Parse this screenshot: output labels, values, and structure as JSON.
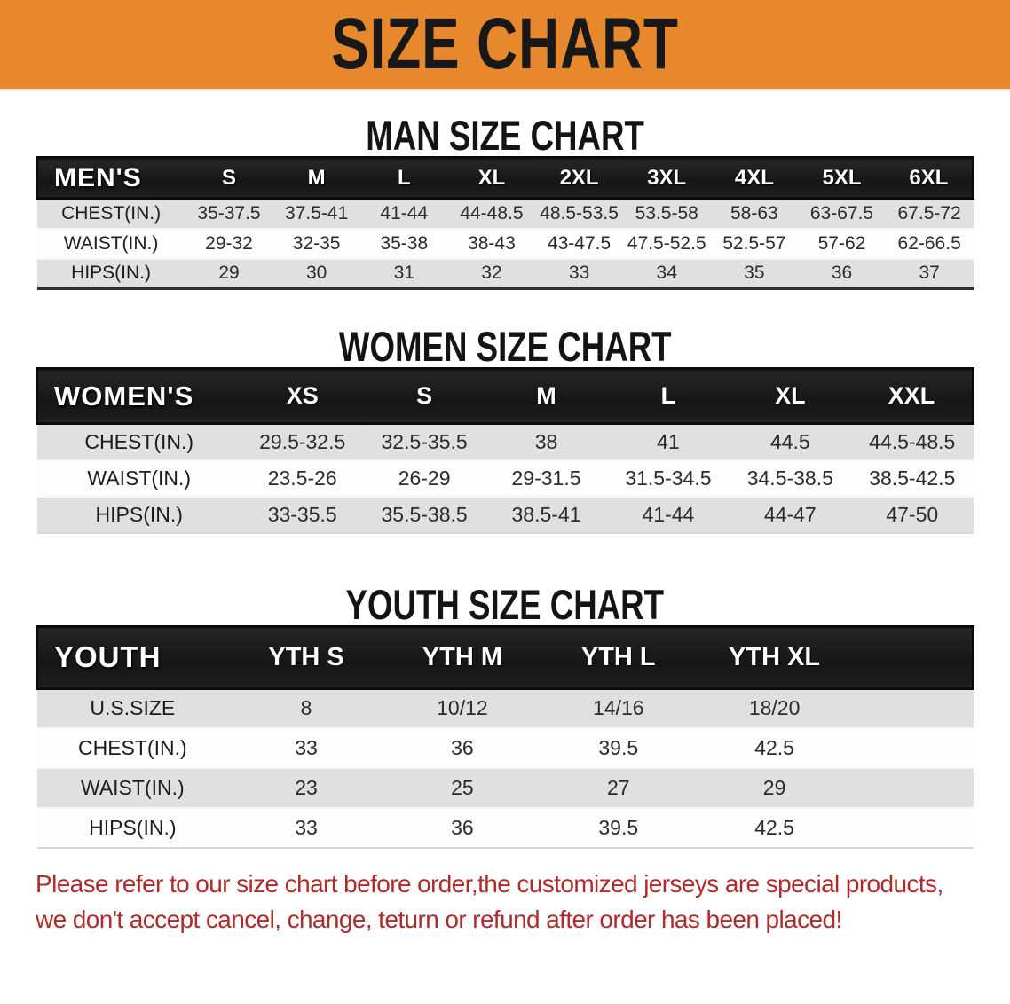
{
  "banner": {
    "title": "SIZE CHART"
  },
  "colors": {
    "banner_bg": "#e8882c",
    "header_bar": "#1a1a1a",
    "stripe_gray": "#e0e0e0",
    "disclaimer_red": "#b02b2b"
  },
  "sections": [
    {
      "heading": "MAN SIZE CHART",
      "table": {
        "label": "MEN'S",
        "columns": [
          "S",
          "M",
          "L",
          "XL",
          "2XL",
          "3XL",
          "4XL",
          "5XL",
          "6XL"
        ],
        "rows": [
          {
            "label": "CHEST(IN.)",
            "values": [
              "35-37.5",
              "37.5-41",
              "41-44",
              "44-48.5",
              "48.5-53.5",
              "53.5-58",
              "58-63",
              "63-67.5",
              "67.5-72"
            ]
          },
          {
            "label": "WAIST(IN.)",
            "values": [
              "29-32",
              "32-35",
              "35-38",
              "38-43",
              "43-47.5",
              "47.5-52.5",
              "52.5-57",
              "57-62",
              "62-66.5"
            ]
          },
          {
            "label": "HIPS(IN.)",
            "values": [
              "29",
              "30",
              "31",
              "32",
              "33",
              "34",
              "35",
              "36",
              "37"
            ]
          }
        ]
      }
    },
    {
      "heading": "WOMEN SIZE CHART",
      "table": {
        "label": "WOMEN'S",
        "columns": [
          "XS",
          "S",
          "M",
          "L",
          "XL",
          "XXL"
        ],
        "rows": [
          {
            "label": "CHEST(IN.)",
            "values": [
              "29.5-32.5",
              "32.5-35.5",
              "38",
              "41",
              "44.5",
              "44.5-48.5"
            ]
          },
          {
            "label": "WAIST(IN.)",
            "values": [
              "23.5-26",
              "26-29",
              "29-31.5",
              "31.5-34.5",
              "34.5-38.5",
              "38.5-42.5"
            ]
          },
          {
            "label": "HIPS(IN.)",
            "values": [
              "33-35.5",
              "35.5-38.5",
              "38.5-41",
              "41-44",
              "44-47",
              "47-50"
            ]
          }
        ]
      }
    },
    {
      "heading": "YOUTH SIZE CHART",
      "table": {
        "label": "YOUTH",
        "columns": [
          "YTH S",
          "YTH M",
          "YTH L",
          "YTH XL"
        ],
        "rows": [
          {
            "label": "U.S.SIZE",
            "values": [
              "8",
              "10/12",
              "14/16",
              "18/20"
            ]
          },
          {
            "label": "CHEST(IN.)",
            "values": [
              "33",
              "36",
              "39.5",
              "42.5"
            ]
          },
          {
            "label": "WAIST(IN.)",
            "values": [
              "23",
              "25",
              "27",
              "29"
            ]
          },
          {
            "label": "HIPS(IN.)",
            "values": [
              "33",
              "36",
              "39.5",
              "42.5"
            ]
          }
        ]
      }
    }
  ],
  "disclaimer": {
    "line1": "Please refer to our size chart before order,the customized jerseys are special products,",
    "line2": "we don't accept cancel, change, teturn or refund after order has been placed!"
  }
}
